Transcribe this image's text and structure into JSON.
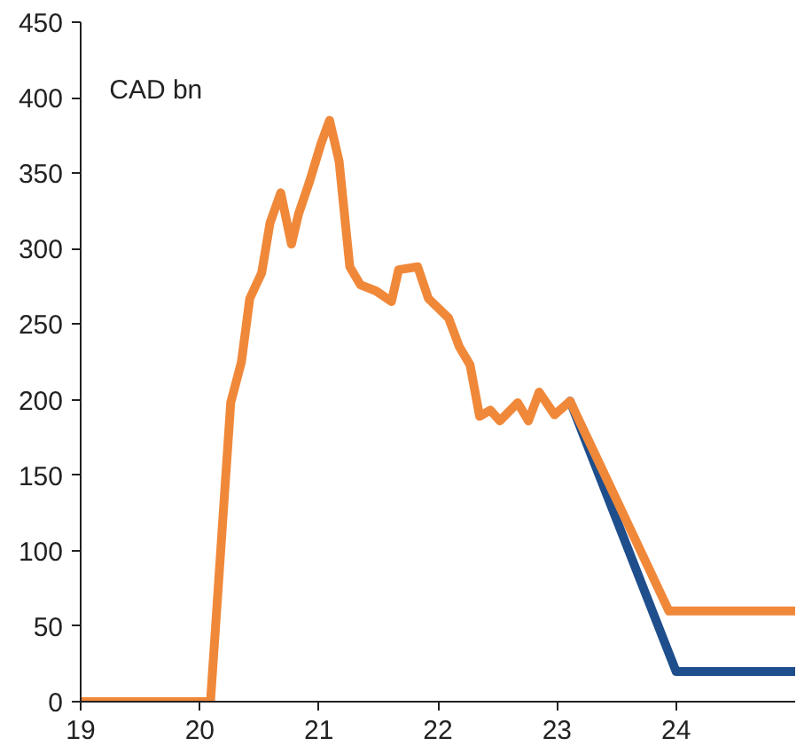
{
  "chart_data": {
    "type": "line",
    "ylabel": "CAD bn",
    "xlim": [
      19,
      25
    ],
    "ylim": [
      0,
      450
    ],
    "xticks": [
      19,
      20,
      21,
      22,
      23,
      24
    ],
    "yticks": [
      0,
      50,
      100,
      150,
      200,
      250,
      300,
      350,
      400,
      450
    ],
    "grid": false,
    "marker": "none",
    "line_style": "solid",
    "series": [
      {
        "color": "#1f4e8c",
        "x": [
          23.11,
          24.0,
          25.0
        ],
        "values": [
          199,
          20,
          20
        ]
      },
      {
        "color": "#f0883a",
        "x": [
          19.0,
          20.09,
          20.14,
          20.26,
          20.35,
          20.42,
          20.52,
          20.59,
          20.68,
          20.77,
          20.83,
          20.92,
          21.02,
          21.09,
          21.17,
          21.26,
          21.35,
          21.48,
          21.61,
          21.67,
          21.83,
          21.92,
          22.09,
          22.18,
          22.27,
          22.35,
          22.44,
          22.52,
          22.67,
          22.76,
          22.85,
          22.98,
          23.11,
          23.94,
          25.0
        ],
        "values": [
          0,
          0,
          58,
          198,
          225,
          267,
          284,
          317,
          337,
          303,
          323,
          344,
          370,
          385,
          358,
          288,
          276,
          272,
          265,
          286,
          288,
          267,
          254,
          235,
          223,
          189,
          193,
          186,
          198,
          186,
          205,
          190,
          199,
          60,
          60
        ]
      }
    ]
  }
}
